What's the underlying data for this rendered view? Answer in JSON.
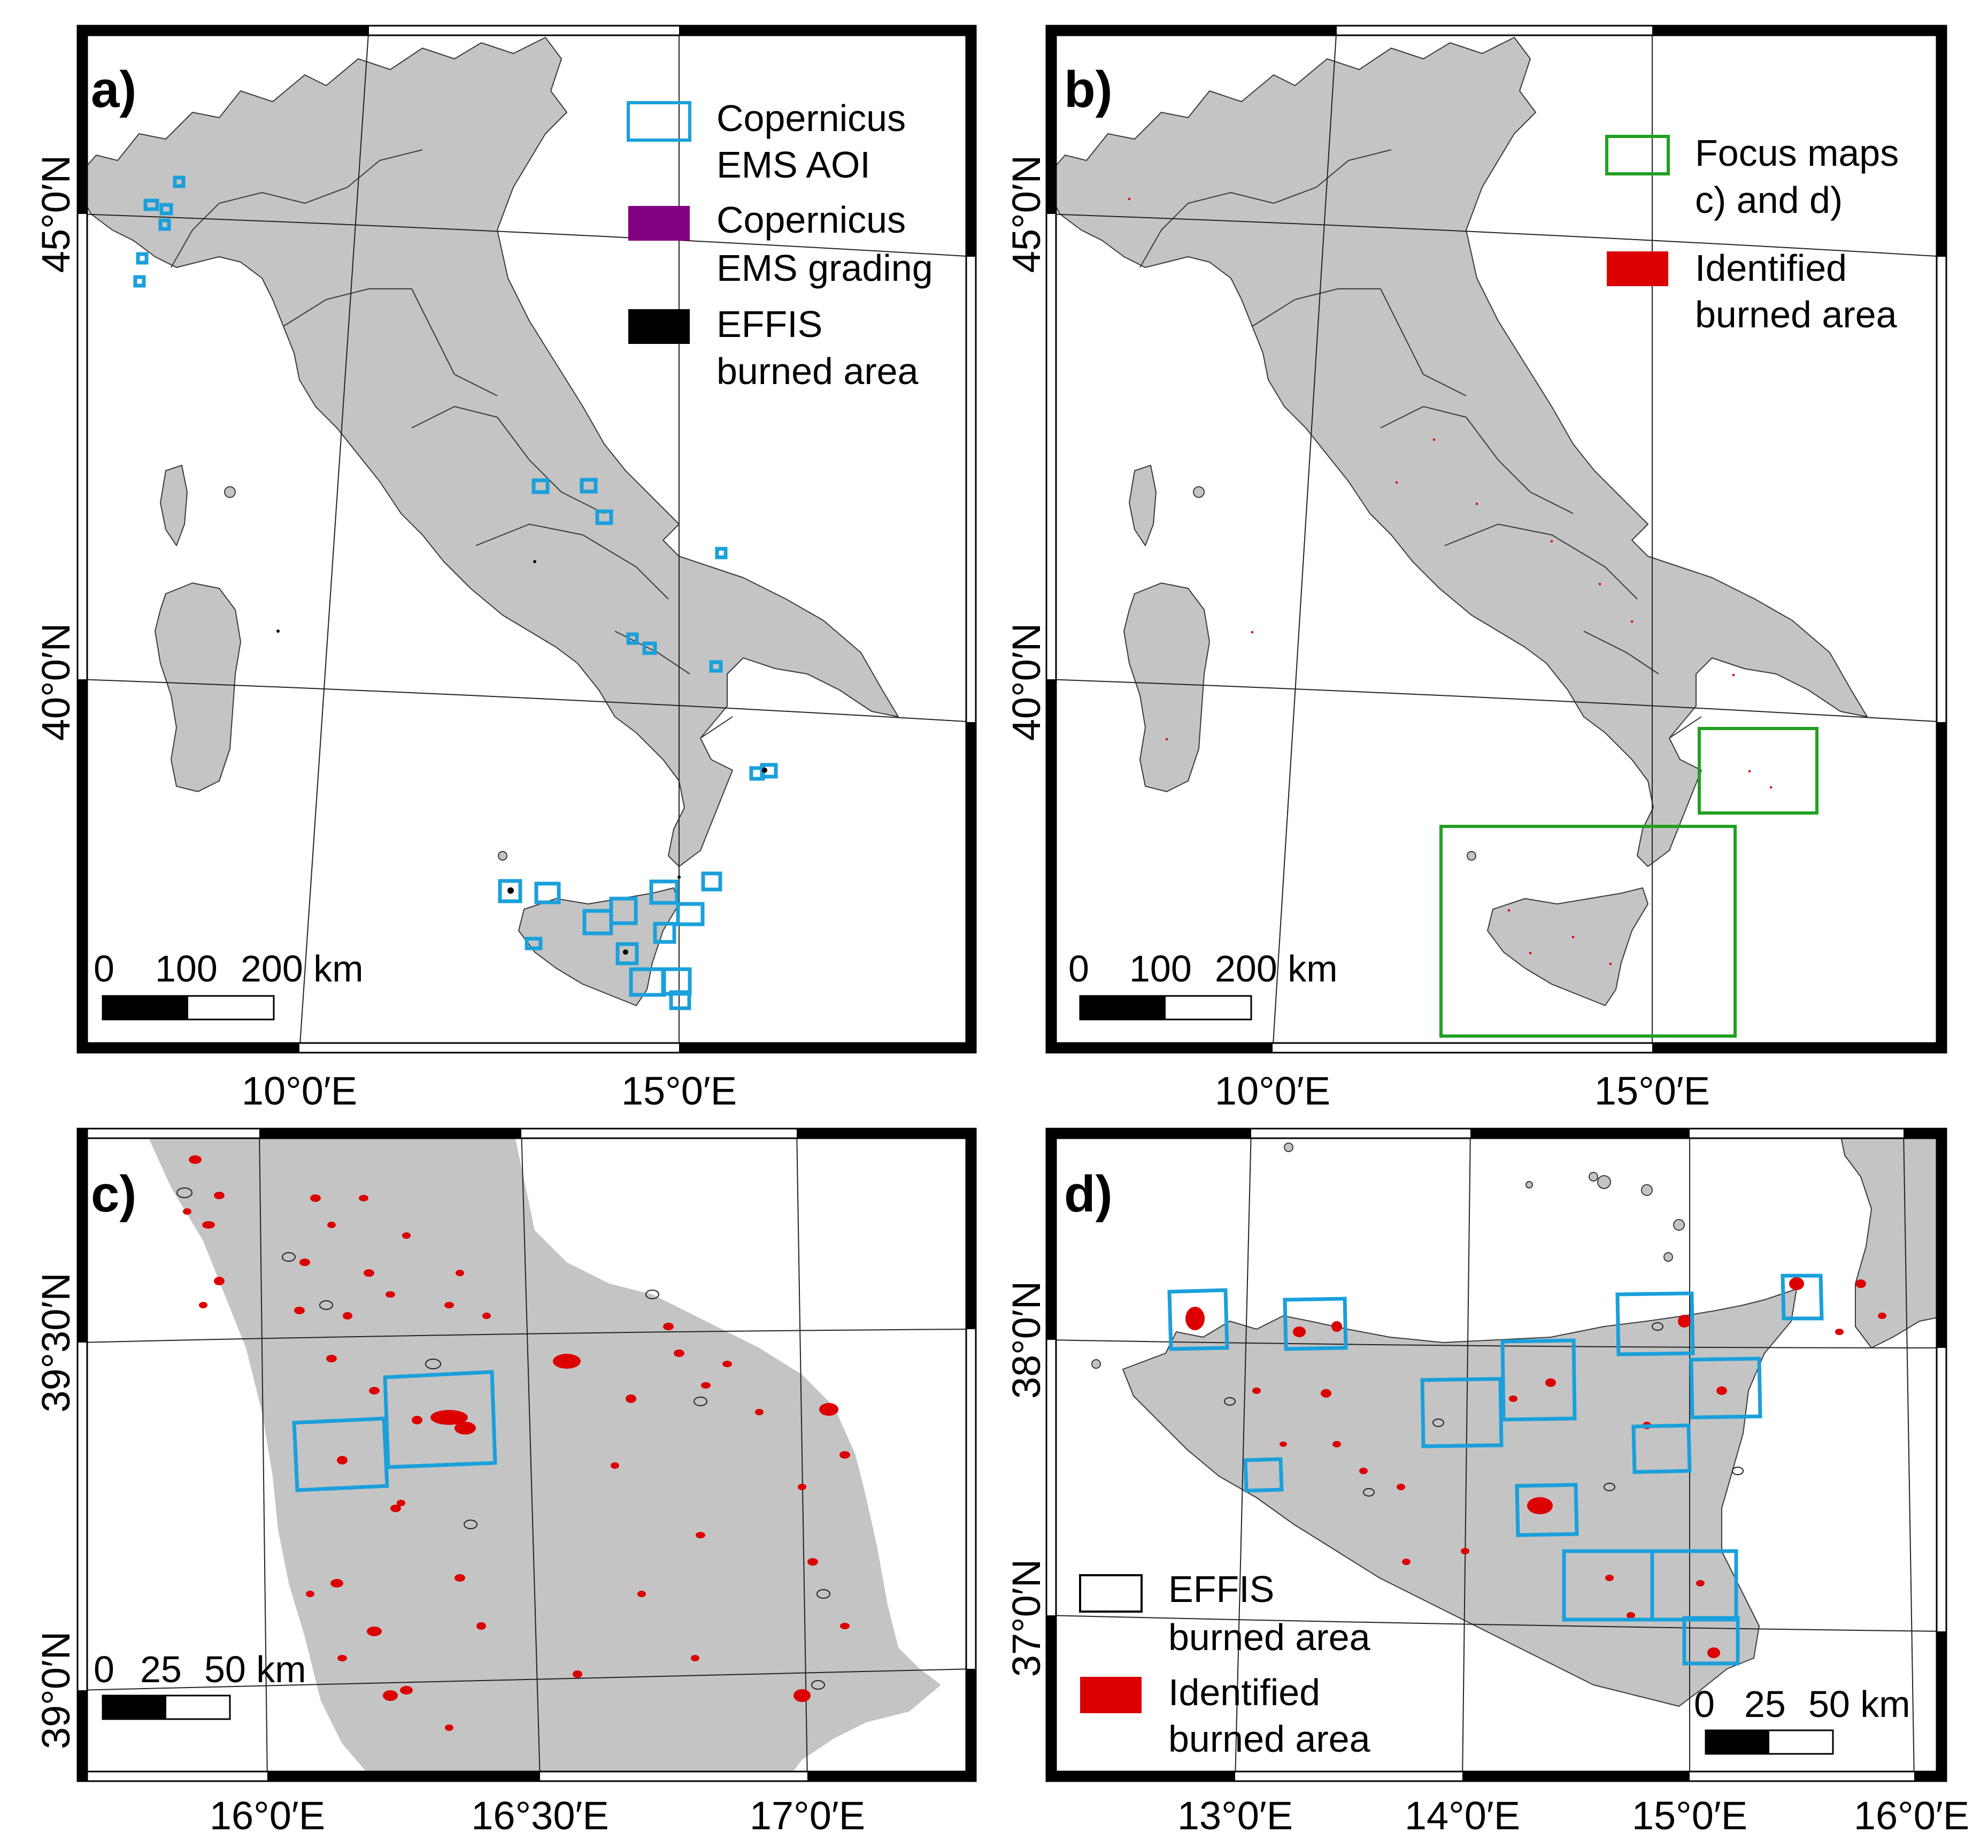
{
  "panels": {
    "a": {
      "label": "a)",
      "lat_ticks": [
        "45°0′N",
        "40°0′N"
      ],
      "lon_ticks": [
        "10°0′E",
        "15°0′E"
      ],
      "scalebar": [
        "0",
        "100",
        "200 km"
      ],
      "legend": [
        {
          "symbol": "outline-blue",
          "lines": [
            "Copernicus",
            "EMS AOI"
          ]
        },
        {
          "symbol": "fill-purple",
          "lines": [
            "Copernicus",
            "EMS grading"
          ]
        },
        {
          "symbol": "fill-black",
          "lines": [
            "EFFIS",
            "burned area"
          ]
        }
      ]
    },
    "b": {
      "label": "b)",
      "lat_ticks": [
        "45°0′N",
        "40°0′N"
      ],
      "lon_ticks": [
        "10°0′E",
        "15°0′E"
      ],
      "scalebar": [
        "0",
        "100",
        "200 km"
      ],
      "legend": [
        {
          "symbol": "outline-green",
          "lines": [
            "Focus maps",
            "c) and d)"
          ]
        },
        {
          "symbol": "fill-red",
          "lines": [
            "Identified",
            "burned area"
          ]
        }
      ]
    },
    "c": {
      "label": "c)",
      "lat_ticks": [
        "39°30′N",
        "39°0′N"
      ],
      "lon_ticks": [
        "16°0′E",
        "16°30′E",
        "17°0′E"
      ],
      "scalebar": [
        "0",
        "25",
        "50 km"
      ]
    },
    "d": {
      "label": "d)",
      "lat_ticks": [
        "38°0′N",
        "37°0′N"
      ],
      "lon_ticks": [
        "13°0′E",
        "14°0′E",
        "15°0′E",
        "16°0′E"
      ],
      "scalebar": [
        "0",
        "25",
        "50 km"
      ],
      "legend": [
        {
          "symbol": "outline-black",
          "lines": [
            "EFFIS",
            "burned area"
          ]
        },
        {
          "symbol": "fill-red",
          "lines": [
            "Identified",
            "burned area"
          ]
        }
      ]
    }
  },
  "colors": {
    "land": "#c4c4c4",
    "aoi": "#1aa0db",
    "grading": "#800080",
    "effis": "#000000",
    "focus": "#22a022",
    "identified": "#dd0000"
  }
}
